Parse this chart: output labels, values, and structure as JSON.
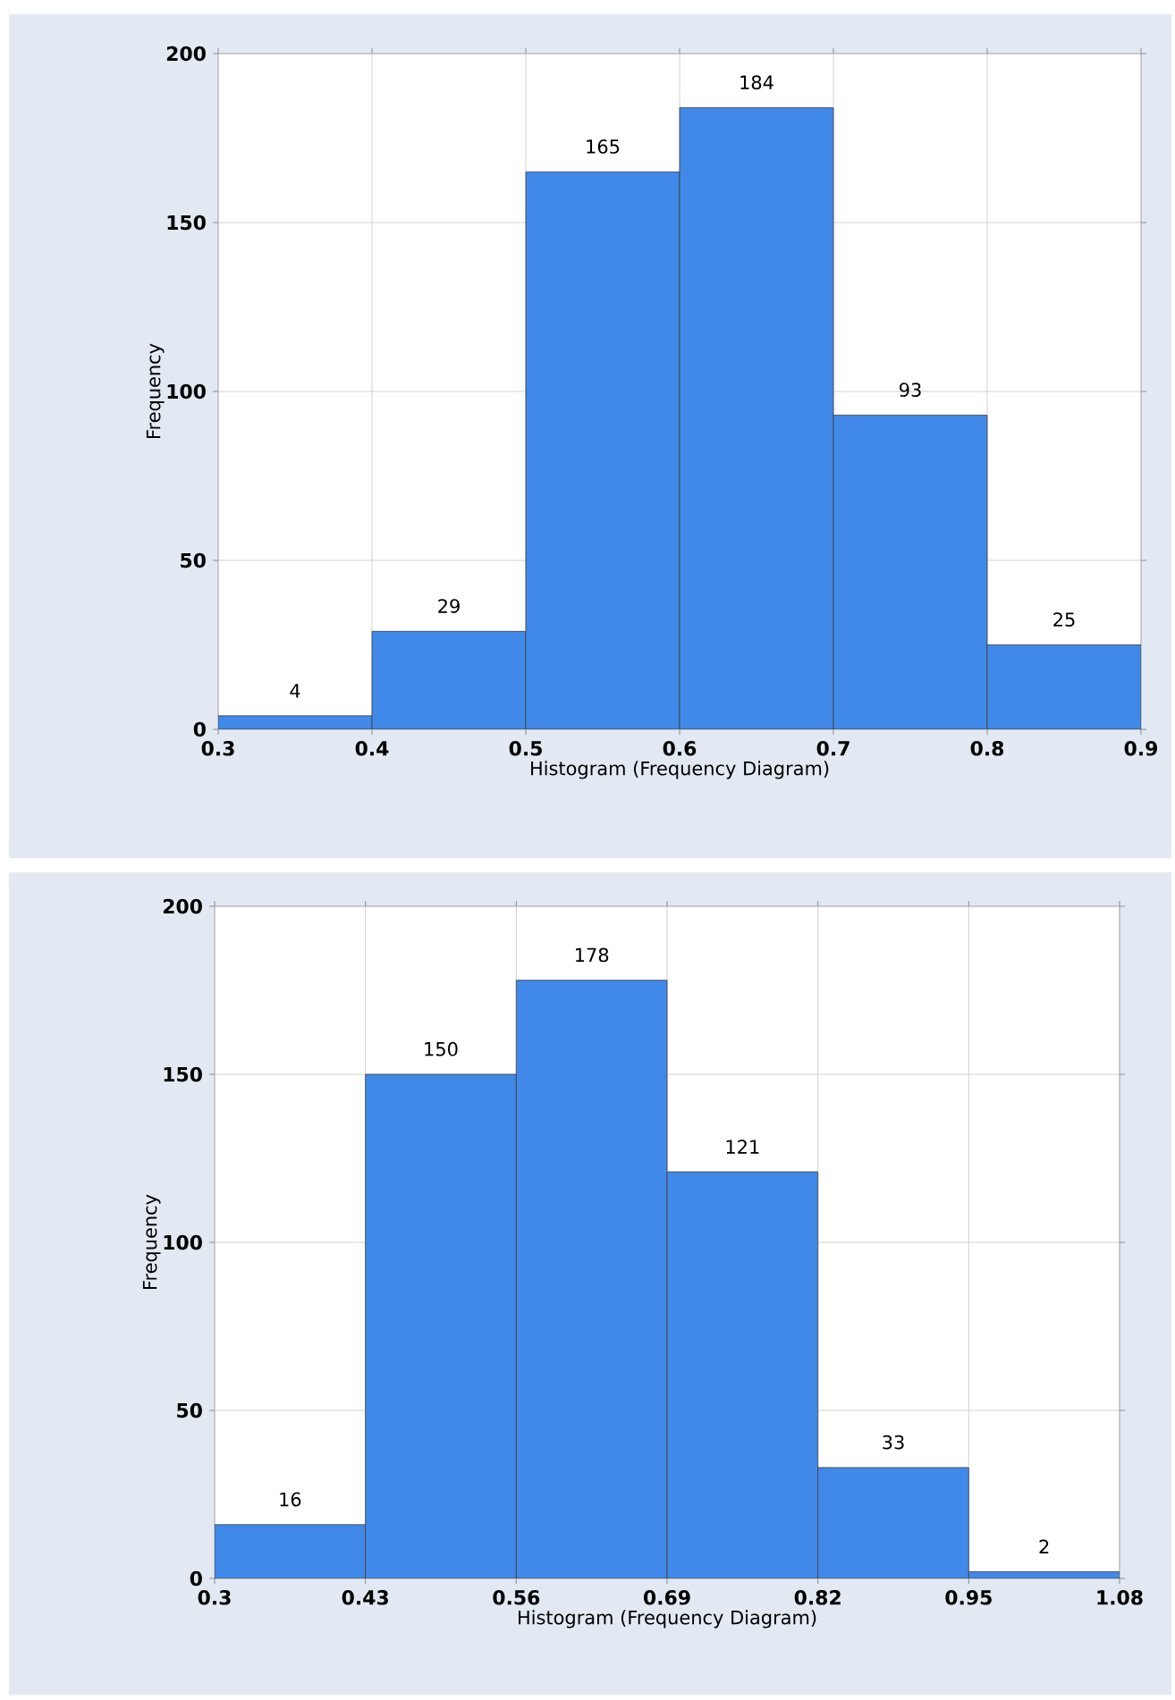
{
  "chart_data": [
    {
      "type": "histogram",
      "xlabel": "Histogram (Frequency Diagram)",
      "ylabel": "Frequency",
      "bins": [
        0.3,
        0.4,
        0.5,
        0.6,
        0.7,
        0.8,
        0.9
      ],
      "values": [
        4,
        29,
        165,
        184,
        93,
        25
      ],
      "color": "#4189e8",
      "xlim": [
        0.3,
        0.9
      ],
      "xticks": [
        0.3,
        0.4,
        0.5,
        0.6,
        0.7,
        0.8,
        0.9
      ],
      "ylim": [
        0,
        200
      ],
      "yticks": [
        0,
        50,
        100,
        150,
        200
      ],
      "grid": true,
      "data_labels": true
    },
    {
      "type": "histogram",
      "xlabel": "Histogram (Frequency Diagram)",
      "ylabel": "Frequency",
      "bins": [
        0.3,
        0.43,
        0.56,
        0.69,
        0.82,
        0.95,
        1.08
      ],
      "values": [
        16,
        150,
        178,
        121,
        33,
        2
      ],
      "color": "#4189e8",
      "xlim": [
        0.3,
        1.08
      ],
      "xticks": [
        0.3,
        0.43,
        0.56,
        0.69,
        0.82,
        0.95,
        1.08
      ],
      "ylim": [
        0,
        200
      ],
      "yticks": [
        0,
        50,
        100,
        150,
        200
      ],
      "grid": true,
      "data_labels": true
    }
  ]
}
